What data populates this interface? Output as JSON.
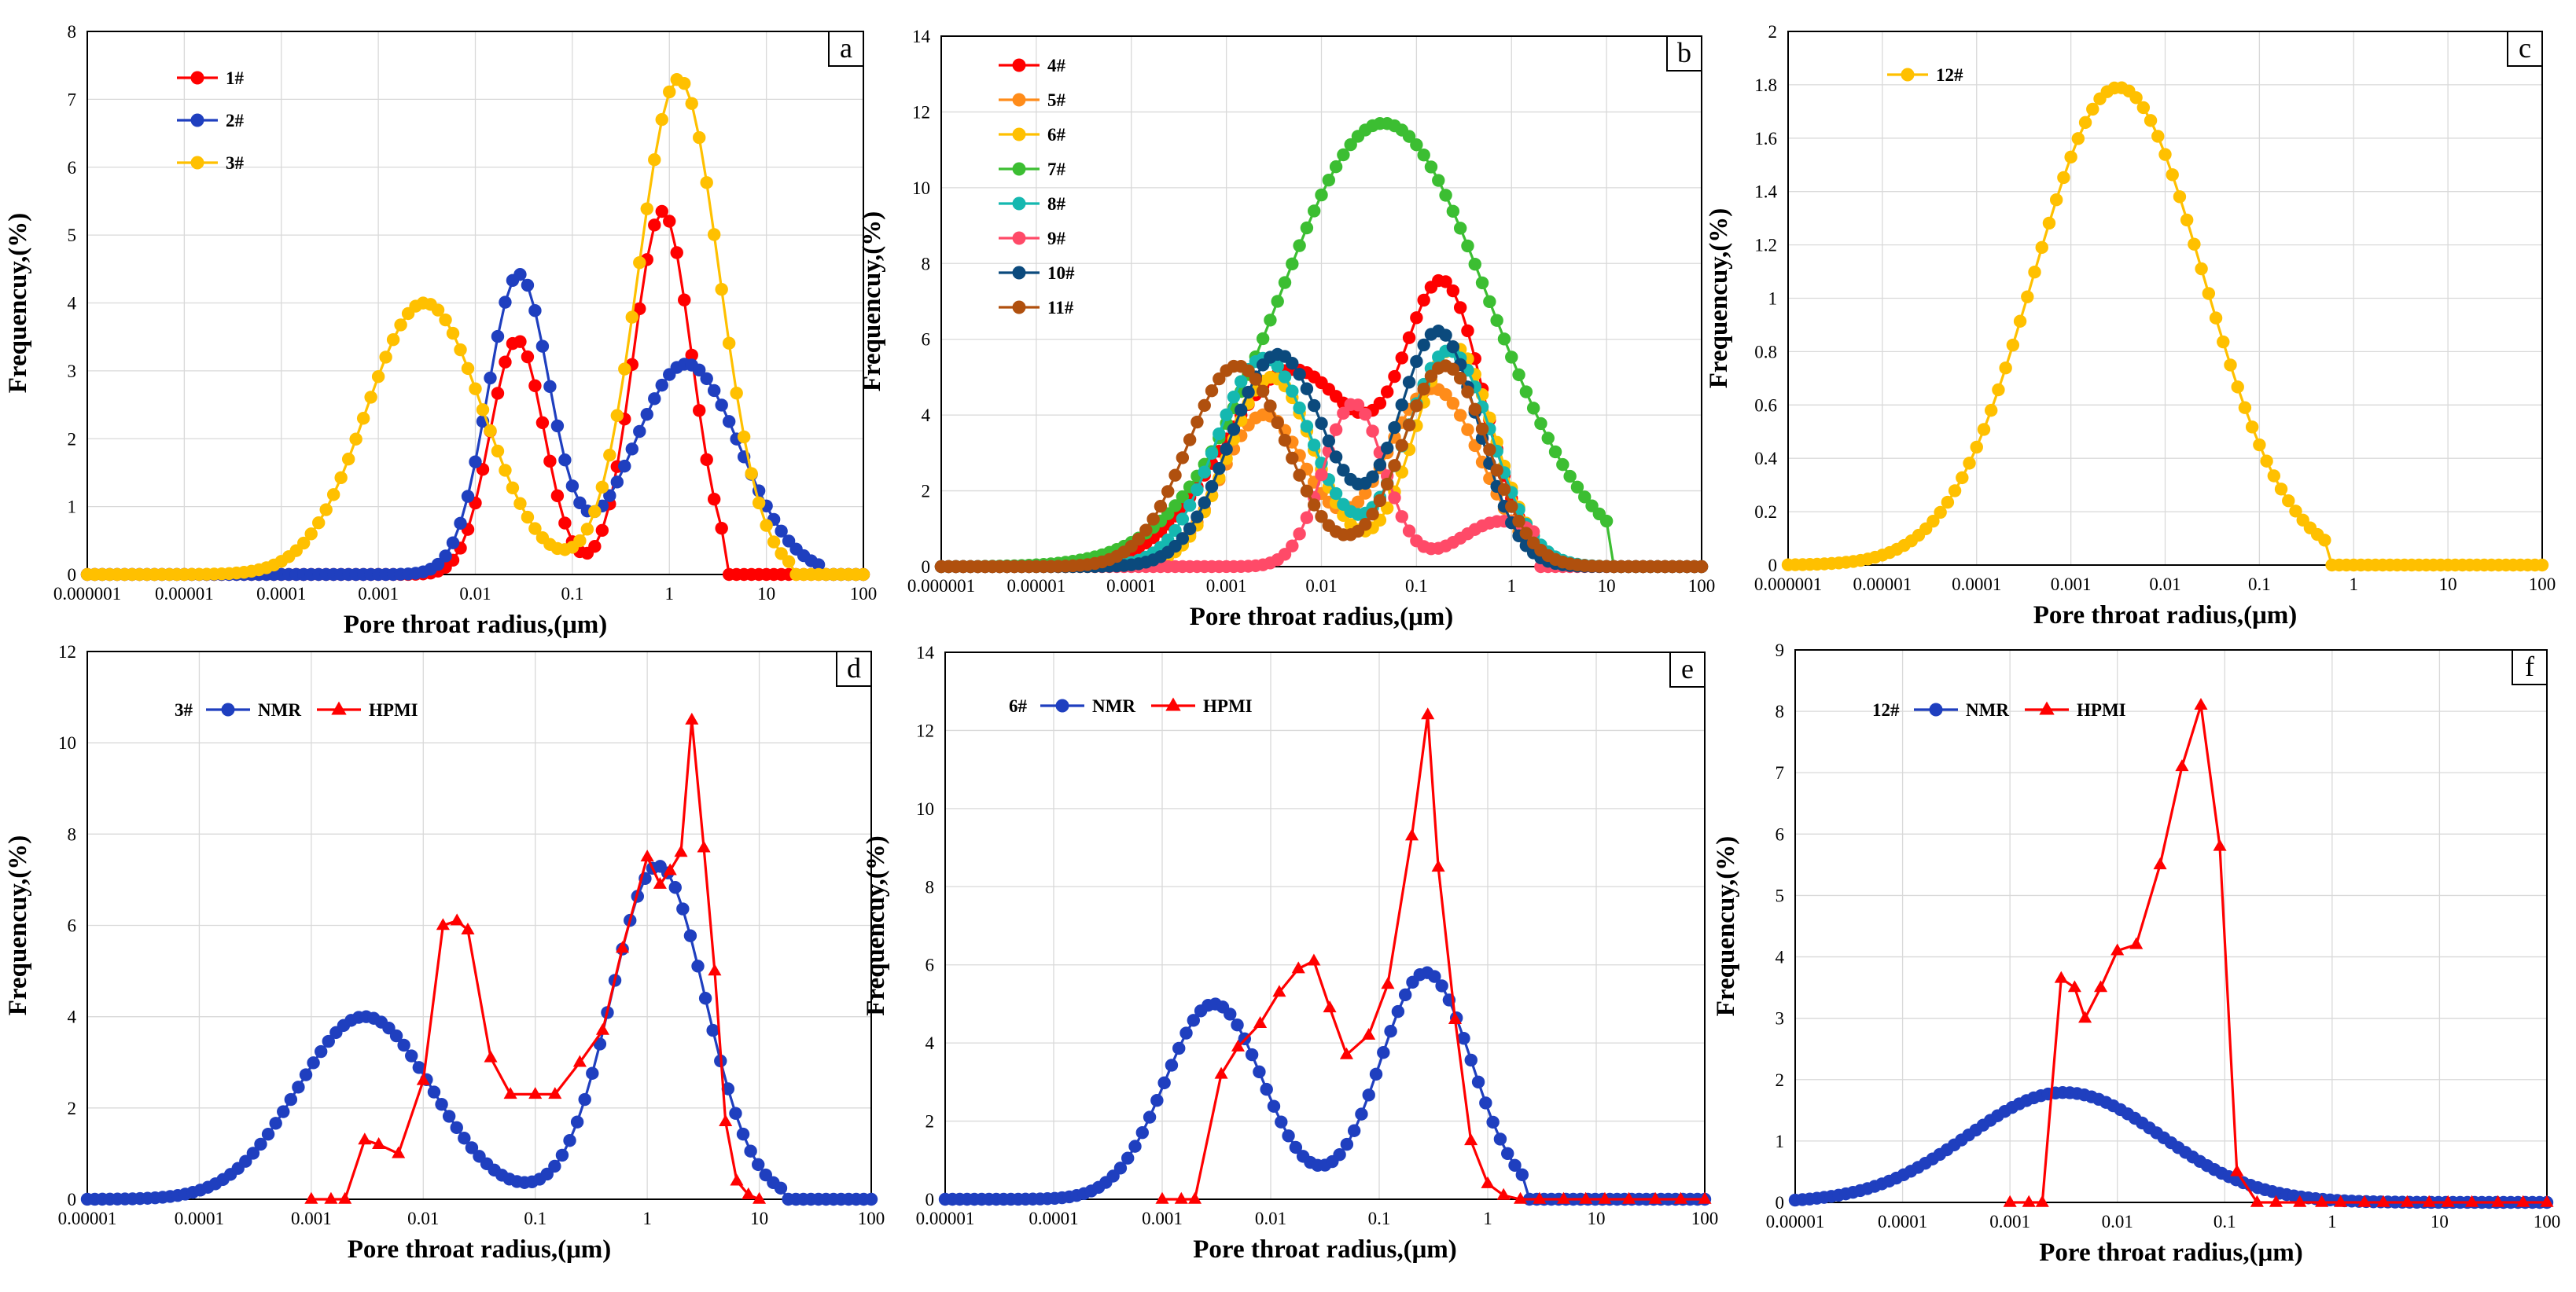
{
  "colors": {
    "red": "#ff0000",
    "blue": "#1f3fbf",
    "gold": "#ffc000",
    "orange": "#ff8c1a",
    "green": "#3cbe32",
    "teal": "#15b8b0",
    "pink": "#ff4a68",
    "navy": "#0b4a7d",
    "brown": "#b0500e"
  },
  "chart_data": [
    {
      "id": "a",
      "type": "line",
      "panel_letter": "a",
      "xscale": "log",
      "xlim": [
        1e-06,
        100
      ],
      "ylim": [
        0,
        8
      ],
      "ystep": 1,
      "xticks": [
        "0.000001",
        "0.00001",
        "0.0001",
        "0.001",
        "0.01",
        "0.1",
        "1",
        "10",
        "100"
      ],
      "xlabel": "Pore throat radius,(μm)",
      "ylabel": "Frequencuy,(%)",
      "series": [
        {
          "name": "1#",
          "color": "red",
          "marker": "circle",
          "comps": [
            [
              3.45,
              0.027,
              0.28
            ],
            [
              5.35,
              0.85,
              0.3
            ]
          ],
          "cut": [
            0.0003,
            4.0
          ]
        },
        {
          "name": "2#",
          "color": "blue",
          "marker": "circle",
          "comps": [
            [
              4.4,
              0.028,
              0.32
            ],
            [
              3.1,
              1.5,
              0.55
            ]
          ],
          "cut": [
            5e-05,
            40
          ]
        },
        {
          "name": "3#",
          "color": "gold",
          "marker": "circle",
          "comps": [
            [
              4.0,
              0.003,
              0.6
            ],
            [
              7.3,
              1.25,
              0.42
            ]
          ],
          "cut": [
            1e-06,
            18
          ]
        }
      ]
    },
    {
      "id": "b",
      "type": "line",
      "panel_letter": "b",
      "xscale": "log",
      "xlim": [
        1e-06,
        100
      ],
      "ylim": [
        0,
        14
      ],
      "ystep": 2,
      "xticks": [
        "0.000001",
        "0.00001",
        "0.0001",
        "0.001",
        "0.01",
        "0.1",
        "1",
        "10",
        "100"
      ],
      "xlabel": "Pore throat radius,(μm)",
      "ylabel": "Frequencuy,(%)",
      "series": [
        {
          "name": "4#",
          "color": "red",
          "marker": "circle",
          "comps": [
            [
              5.2,
              0.005,
              0.75
            ],
            [
              7.0,
              0.2,
              0.42
            ]
          ],
          "cut": [
            1e-05,
            10
          ]
        },
        {
          "name": "5#",
          "color": "orange",
          "marker": "circle",
          "comps": [
            [
              4.0,
              0.0025,
              0.45
            ],
            [
              4.7,
              0.15,
              0.5
            ]
          ],
          "cut": [
            1e-05,
            10
          ]
        },
        {
          "name": "6#",
          "color": "gold",
          "marker": "circle",
          "comps": [
            [
              5.0,
              0.003,
              0.45
            ],
            [
              5.8,
              0.25,
              0.42
            ]
          ],
          "cut": [
            1e-05,
            10
          ]
        },
        {
          "name": "7#",
          "color": "green",
          "marker": "circle",
          "comps": [
            [
              11.7,
              0.045,
              1.1
            ]
          ],
          "cut": [
            1e-06,
            10
          ]
        },
        {
          "name": "8#",
          "color": "teal",
          "marker": "circle",
          "comps": [
            [
              5.5,
              0.0025,
              0.5
            ],
            [
              5.7,
              0.22,
              0.45
            ]
          ],
          "cut": [
            1e-05,
            10
          ]
        },
        {
          "name": "9#",
          "color": "pink",
          "marker": "circle",
          "comps": [
            [
              4.3,
              0.022,
              0.32
            ],
            [
              1.2,
              0.8,
              0.45
            ]
          ],
          "cut": [
            0.0004,
            1.9
          ]
        },
        {
          "name": "10#",
          "color": "navy",
          "marker": "circle",
          "comps": [
            [
              5.6,
              0.0035,
              0.5
            ],
            [
              6.2,
              0.17,
              0.42
            ]
          ],
          "cut": [
            1e-05,
            10
          ]
        },
        {
          "name": "11#",
          "color": "brown",
          "marker": "circle",
          "comps": [
            [
              5.3,
              0.0013,
              0.52
            ],
            [
              5.3,
              0.2,
              0.45
            ]
          ],
          "cut": [
            1e-06,
            10
          ]
        }
      ]
    },
    {
      "id": "c",
      "type": "line",
      "panel_letter": "c",
      "xscale": "log",
      "xlim": [
        1e-06,
        100
      ],
      "ylim": [
        0,
        2
      ],
      "ystep": 0.2,
      "xticks": [
        "0.000001",
        "0.00001",
        "0.0001",
        "0.001",
        "0.01",
        "0.1",
        "1",
        "10",
        "100"
      ],
      "xlabel": "Pore throat radius,(μm)",
      "ylabel": "Frequencuy,(%)",
      "series": [
        {
          "name": "12#",
          "color": "gold",
          "marker": "circle",
          "comps": [
            [
              1.79,
              0.0032,
              0.9
            ]
          ],
          "cut": [
            1e-06,
            0.5
          ]
        }
      ]
    },
    {
      "id": "d",
      "type": "line",
      "panel_letter": "d",
      "xscale": "log",
      "xlim": [
        1e-05,
        100
      ],
      "ylim": [
        0,
        12
      ],
      "ystep": 2,
      "xticks": [
        "0.00001",
        "0.0001",
        "0.001",
        "0.01",
        "0.1",
        "1",
        "10",
        "100"
      ],
      "xlabel": "Pore throat radius,(μm)",
      "ylabel": "Frequencuy,(%)",
      "sample_label": "3#",
      "series": [
        {
          "name": "NMR",
          "color": "blue",
          "marker": "circle",
          "comps": [
            [
              4.0,
              0.003,
              0.6
            ],
            [
              7.3,
              1.25,
              0.42
            ]
          ],
          "cut": [
            1e-05,
            18
          ]
        },
        {
          "name": "HPMI",
          "color": "red",
          "marker": "triangle",
          "x": [
            0.001,
            0.0015,
            0.002,
            0.003,
            0.004,
            0.006,
            0.01,
            0.015,
            0.02,
            0.025,
            0.04,
            0.06,
            0.1,
            0.15,
            0.25,
            0.4,
            0.6,
            1.0,
            1.3,
            1.6,
            2.0,
            2.5,
            3.2,
            4.0,
            5.0,
            6.3,
            8.0,
            10
          ],
          "y": [
            0,
            0,
            0,
            1.3,
            1.2,
            1.0,
            2.6,
            6.0,
            6.1,
            5.9,
            3.1,
            2.3,
            2.3,
            2.3,
            3.0,
            3.7,
            5.5,
            7.5,
            6.9,
            7.2,
            7.6,
            10.5,
            7.7,
            5.0,
            1.7,
            0.4,
            0.1,
            0
          ]
        }
      ]
    },
    {
      "id": "e",
      "type": "line",
      "panel_letter": "e",
      "xscale": "log",
      "xlim": [
        1e-05,
        100
      ],
      "ylim": [
        0,
        14
      ],
      "ystep": 2,
      "xticks": [
        "0.00001",
        "0.0001",
        "0.001",
        "0.01",
        "0.1",
        "1",
        "10",
        "100"
      ],
      "xlabel": "Pore throat radius,(μm)",
      "ylabel": "Frequencuy,(%)",
      "sample_label": "6#",
      "series": [
        {
          "name": "NMR",
          "color": "blue",
          "marker": "circle",
          "comps": [
            [
              5.0,
              0.003,
              0.45
            ],
            [
              5.8,
              0.27,
              0.42
            ]
          ],
          "cut": [
            1e-05,
            2.2
          ]
        },
        {
          "name": "HPMI",
          "color": "red",
          "marker": "triangle",
          "x": [
            0.001,
            0.0015,
            0.002,
            0.0035,
            0.005,
            0.008,
            0.012,
            0.018,
            0.025,
            0.035,
            0.05,
            0.08,
            0.12,
            0.2,
            0.28,
            0.35,
            0.5,
            0.7,
            1.0,
            1.4,
            2.0,
            3.0,
            5.0,
            8.0,
            12,
            20,
            35,
            60,
            100
          ],
          "y": [
            0,
            0,
            0,
            3.2,
            3.9,
            4.5,
            5.3,
            5.9,
            6.1,
            4.9,
            3.7,
            4.2,
            5.5,
            9.3,
            12.4,
            8.5,
            4.6,
            1.5,
            0.4,
            0.1,
            0,
            0,
            0,
            0,
            0,
            0,
            0,
            0,
            0
          ]
        }
      ]
    },
    {
      "id": "f",
      "type": "line",
      "panel_letter": "f",
      "xscale": "log",
      "xlim": [
        1e-05,
        100
      ],
      "ylim": [
        0,
        9
      ],
      "ystep": 1,
      "xticks": [
        "0.00001",
        "0.0001",
        "0.001",
        "0.01",
        "0.1",
        "1",
        "10",
        "100"
      ],
      "xlabel": "Pore throat radius,(μm)",
      "ylabel": "Frequencuy,(%)",
      "sample_label": "12#",
      "series": [
        {
          "name": "NMR",
          "color": "blue",
          "marker": "circle",
          "comps": [
            [
              1.79,
              0.0032,
              0.9
            ]
          ],
          "cut": [
            1e-05,
            100
          ]
        },
        {
          "name": "HPMI",
          "color": "red",
          "marker": "triangle",
          "x": [
            0.001,
            0.0015,
            0.002,
            0.003,
            0.004,
            0.005,
            0.007,
            0.01,
            0.015,
            0.025,
            0.04,
            0.06,
            0.09,
            0.13,
            0.2,
            0.3,
            0.5,
            0.8,
            1.2,
            2,
            3,
            5,
            8,
            12,
            20,
            35,
            60,
            100
          ],
          "y": [
            0,
            0,
            0,
            3.65,
            3.5,
            3.0,
            3.5,
            4.1,
            4.2,
            5.5,
            7.1,
            8.1,
            5.8,
            0.5,
            0,
            0,
            0,
            0,
            0,
            0,
            0,
            0,
            0,
            0,
            0,
            0,
            0,
            0
          ]
        }
      ]
    }
  ]
}
